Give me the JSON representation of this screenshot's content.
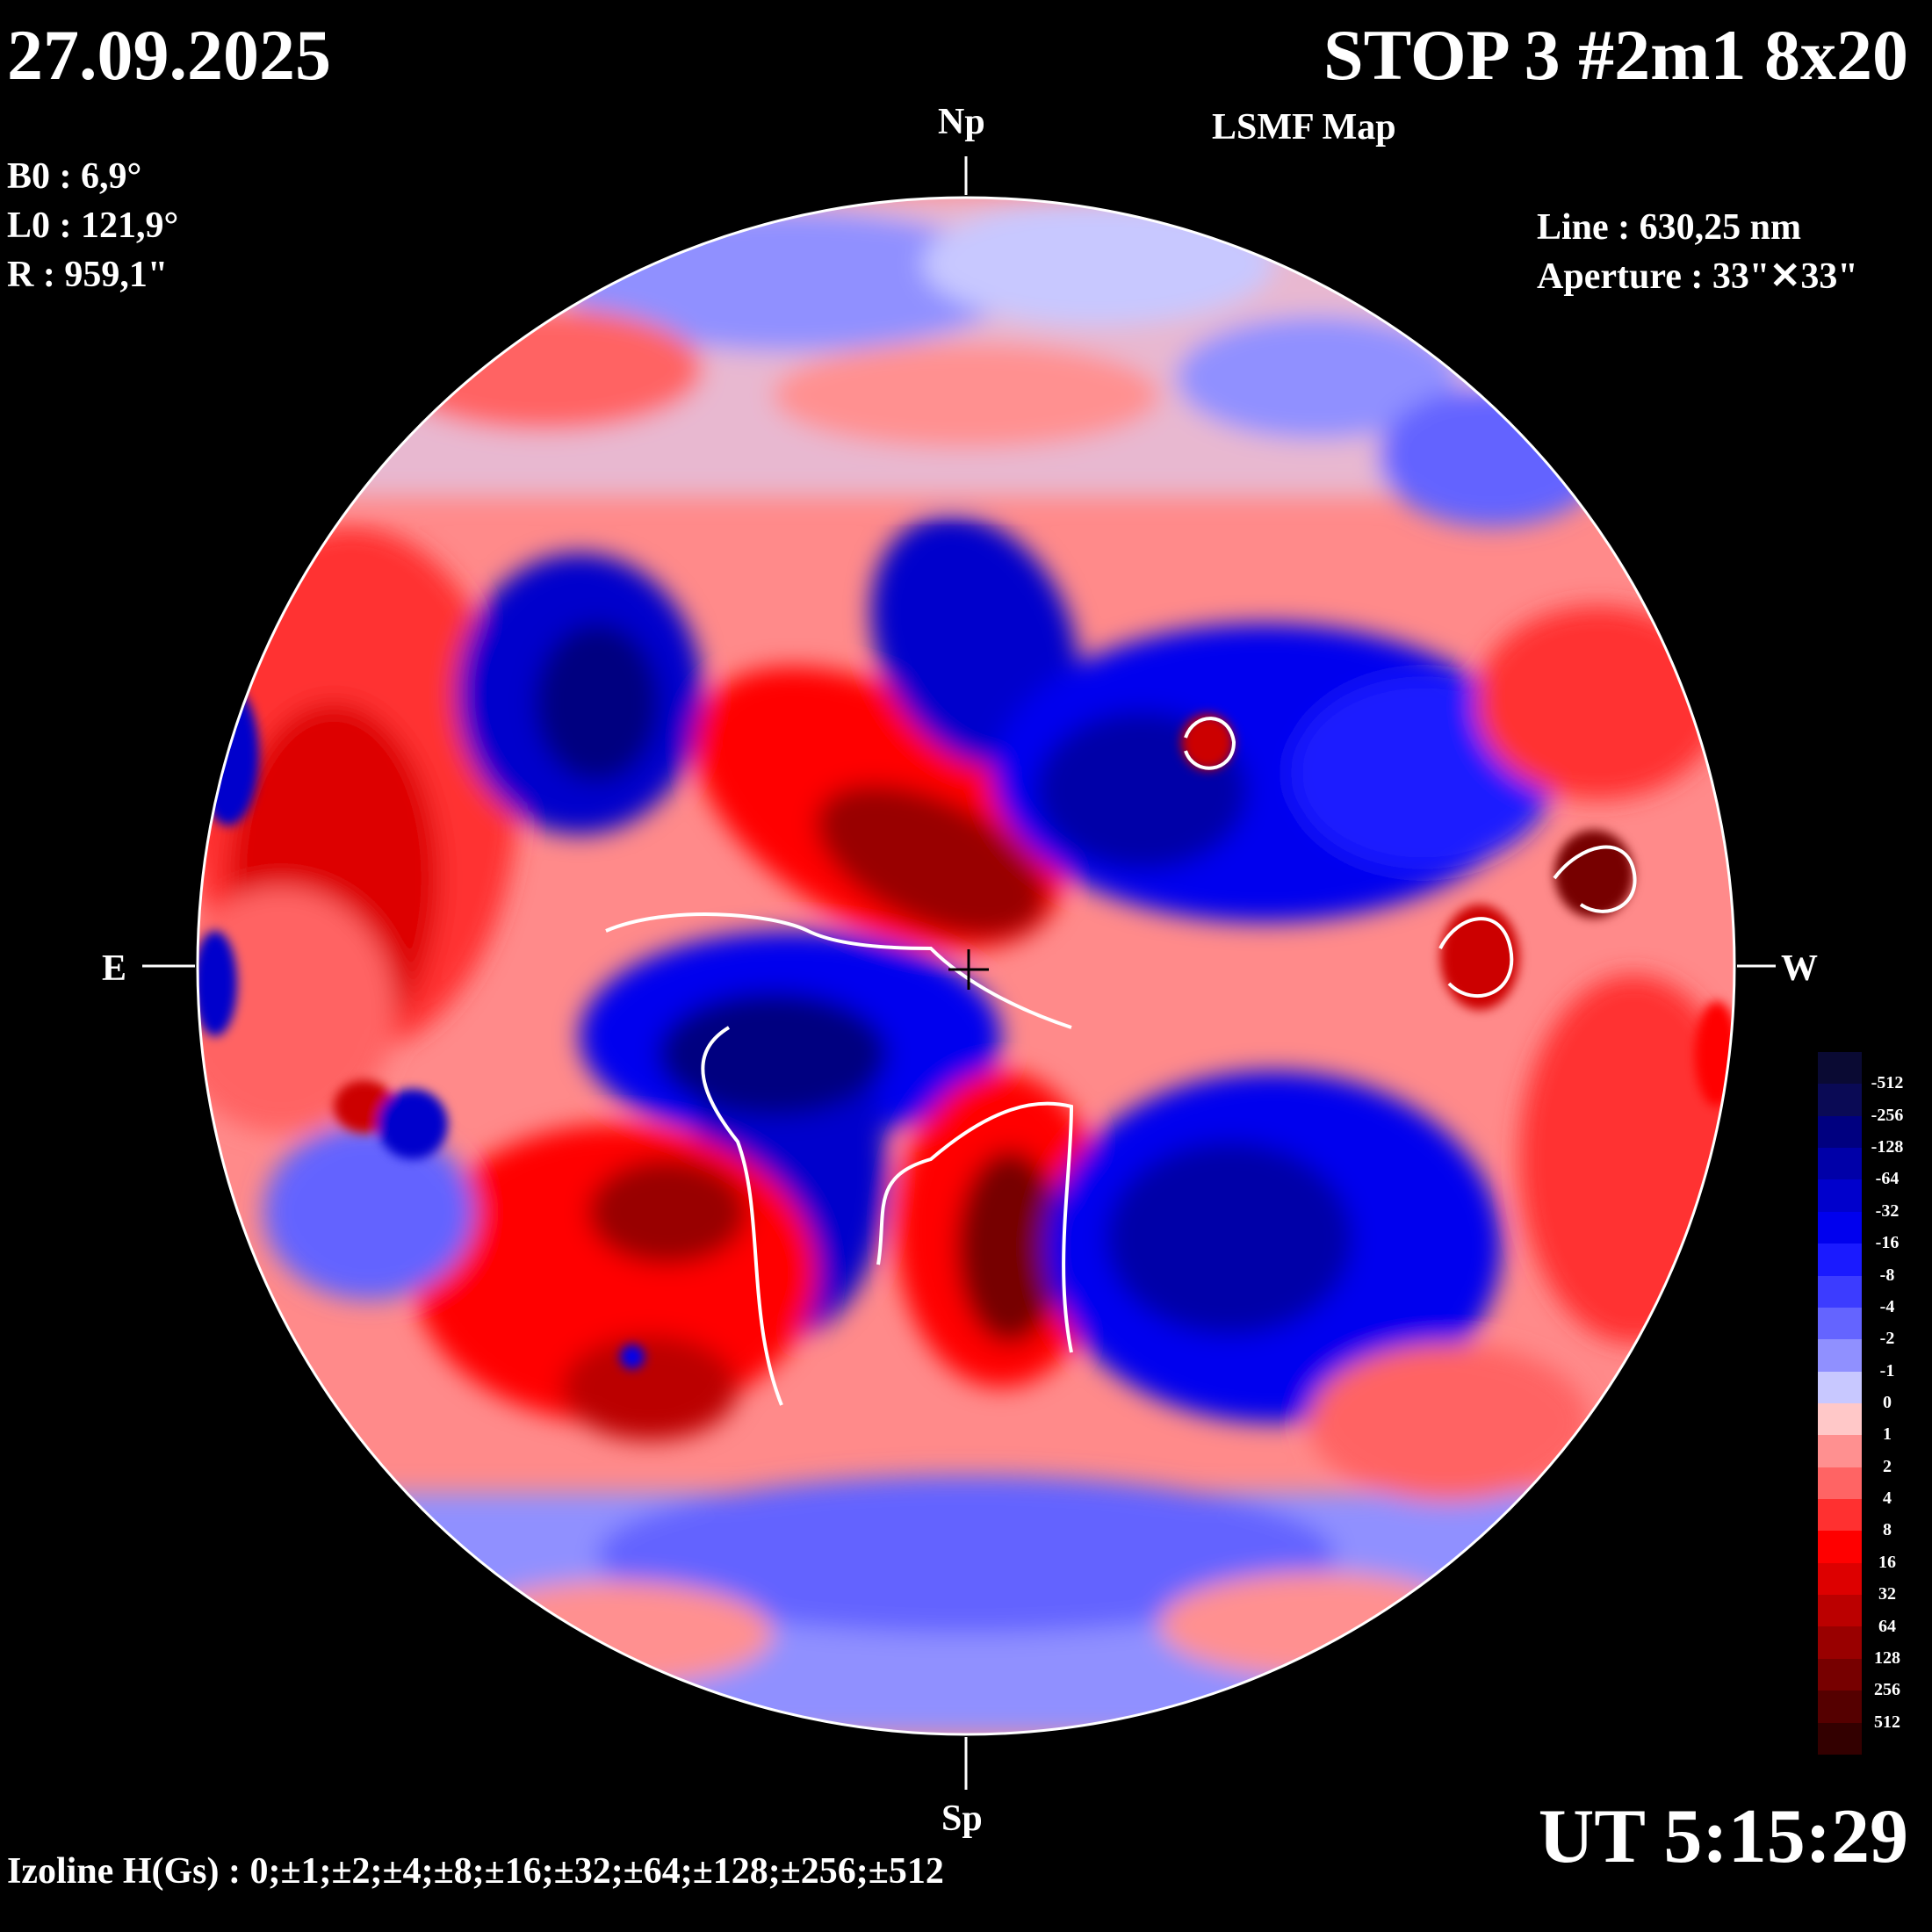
{
  "header": {
    "date": "27.09.2025",
    "title": "STOP 3 #2m1 8x20",
    "subtitle": "LSMF  Map"
  },
  "params": {
    "b0": "B0 : 6,9°",
    "l0": "L0 : 121,9°",
    "r": "R  : 959,1\""
  },
  "instrument": {
    "line": "Line :  630,25 nm",
    "aperture": "Aperture : 33\"✕33\""
  },
  "compass": {
    "north": "Np",
    "south": "Sp",
    "east": "E",
    "west": "W"
  },
  "footer": {
    "ut": "UT 5:15:29",
    "izoline": "Izoline H(Gs) : 0;±1;±2;±4;±8;±16;±32;±64;±128;±256;±512"
  },
  "colorbar": {
    "labels": [
      "-512",
      "-256",
      "-128",
      "-64",
      "-32",
      "-16",
      "-8",
      "-4",
      "-2",
      "-1",
      "0",
      "1",
      "2",
      "4",
      "8",
      "16",
      "32",
      "64",
      "128",
      "256",
      "512"
    ],
    "colors": [
      "#0a0a33",
      "#0a0a55",
      "#000080",
      "#0000a8",
      "#0000cc",
      "#0000ee",
      "#1a1aff",
      "#3c3cff",
      "#6464ff",
      "#9090ff",
      "#c8c8ff",
      "#ffc8c8",
      "#ff9090",
      "#ff6464",
      "#ff3030",
      "#ff0000",
      "#dd0000",
      "#bb0000",
      "#990000",
      "#770000",
      "#550000",
      "#330000"
    ],
    "accent_positive": "#ff0000",
    "accent_negative": "#0000ff"
  }
}
